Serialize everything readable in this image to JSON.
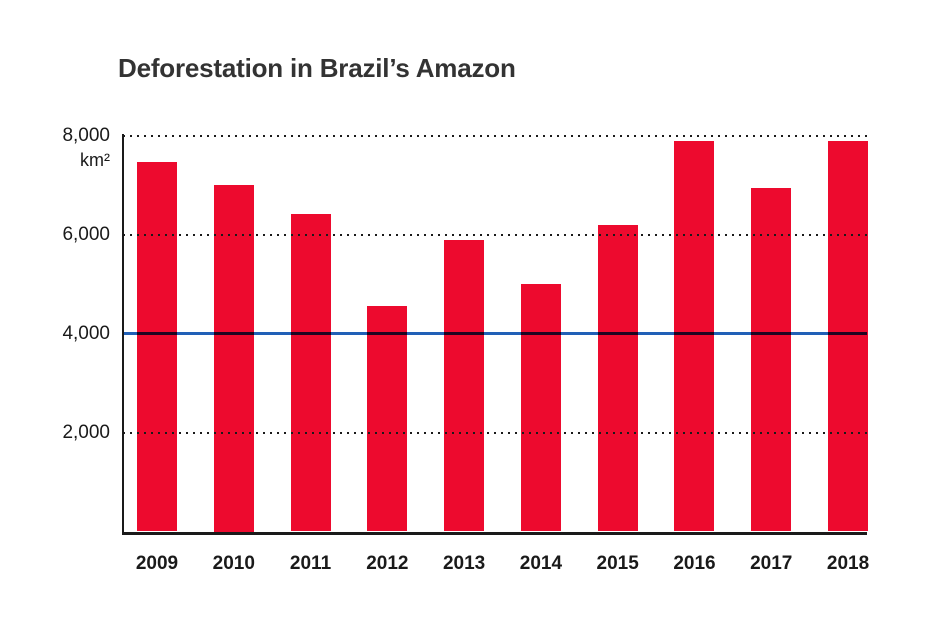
{
  "page": {
    "background_color": "#ffffff"
  },
  "chart_data": {
    "type": "bar",
    "title": "Deforestation in Brazil’s Amazon",
    "unit_label": "km²",
    "categories": [
      "2009",
      "2010",
      "2011",
      "2012",
      "2013",
      "2014",
      "2015",
      "2016",
      "2017",
      "2018"
    ],
    "values": [
      7464,
      7000,
      6418,
      4571,
      5891,
      5012,
      6207,
      7893,
      6947,
      7900
    ],
    "xlabel": "",
    "ylabel": "km²",
    "ylim": [
      0,
      8000
    ],
    "yticks": [
      {
        "value": 8000,
        "label": "8,000"
      },
      {
        "value": 6000,
        "label": "6,000"
      },
      {
        "value": 4000,
        "label": "4,000"
      },
      {
        "value": 2000,
        "label": "2,000"
      }
    ],
    "gridline_values": [
      8000,
      6000,
      2000
    ],
    "grid_style": "dotted",
    "reference_line": {
      "value": 4000,
      "color": "#2160B7"
    },
    "bar_color": "#ED0A2E",
    "axis_color": "#1a1a1a",
    "title_color": "#333333",
    "legend_position": "none"
  }
}
